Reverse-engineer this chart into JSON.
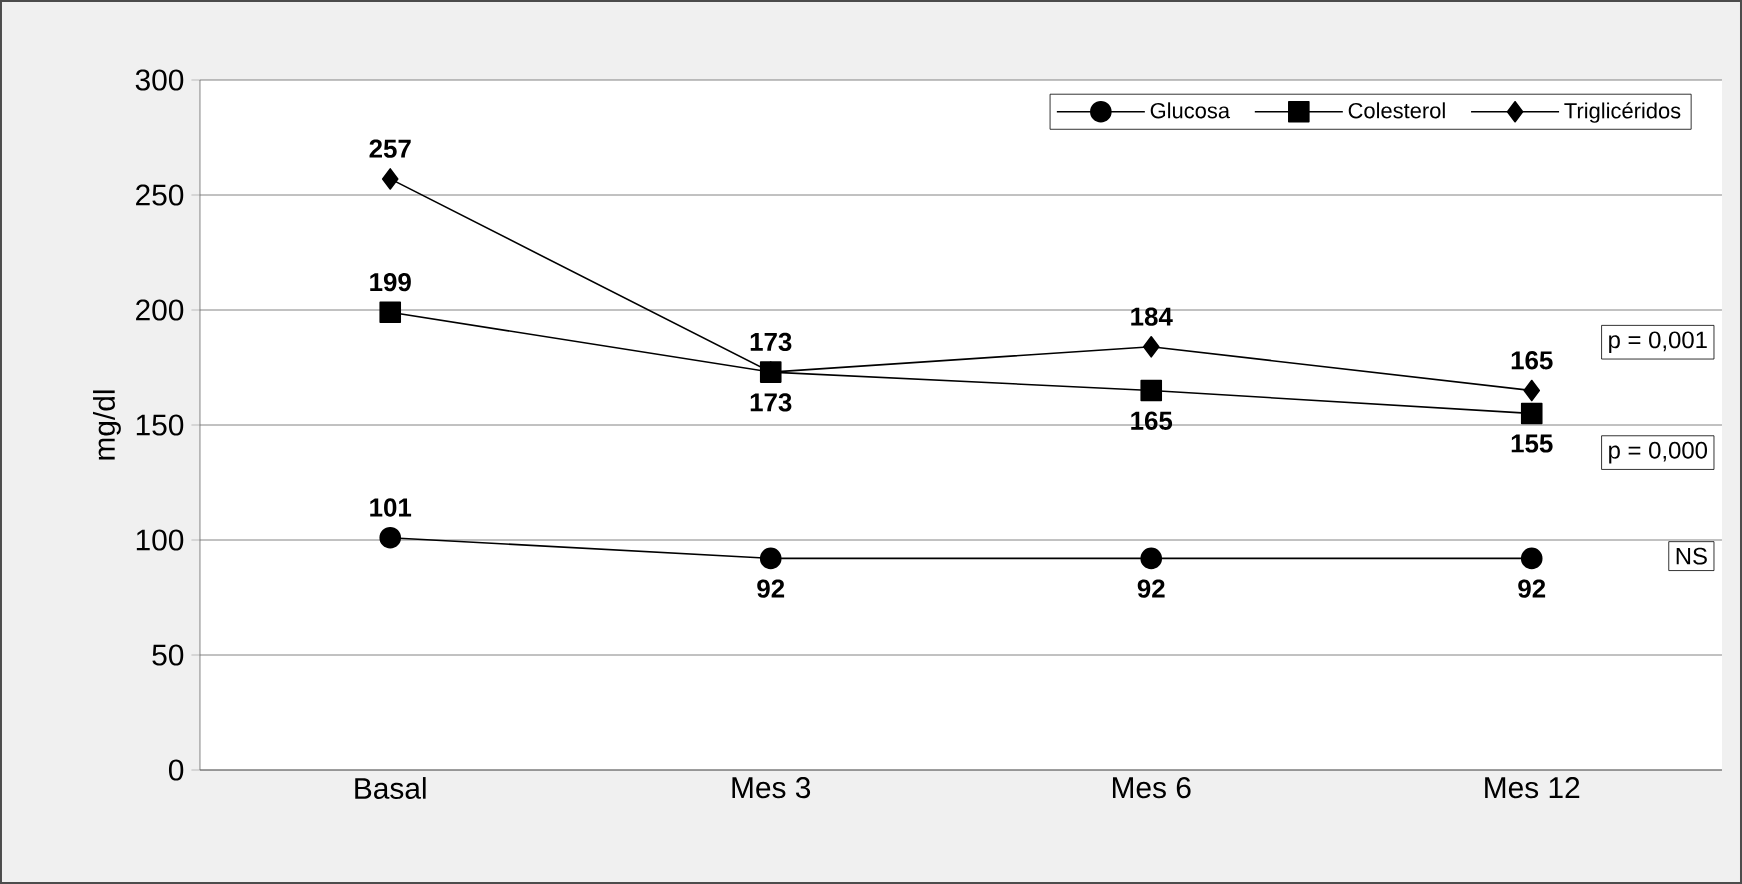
{
  "chart_data": {
    "type": "line",
    "ylabel": "mg/dl",
    "categories": [
      "Basal",
      "Mes 3",
      "Mes 6",
      "Mes 12"
    ],
    "series": [
      {
        "name": "Glucosa",
        "color": "#000000",
        "marker": "circle",
        "values": [
          101,
          92,
          92,
          92
        ]
      },
      {
        "name": "Colesterol",
        "color": "#000000",
        "marker": "square",
        "values": [
          199,
          173,
          165,
          155
        ]
      },
      {
        "name": "Triglicéridos",
        "color": "#000000",
        "marker": "diamond",
        "values": [
          257,
          173,
          184,
          165
        ]
      }
    ],
    "ylim": [
      0,
      300
    ],
    "yticks": [
      0,
      50,
      100,
      150,
      200,
      250,
      300
    ],
    "grid": "y",
    "legend": "top right",
    "data_labels": true,
    "line_style": "solid",
    "annotations": [
      "p = 0,001",
      "p = 0,000",
      "NS"
    ]
  }
}
